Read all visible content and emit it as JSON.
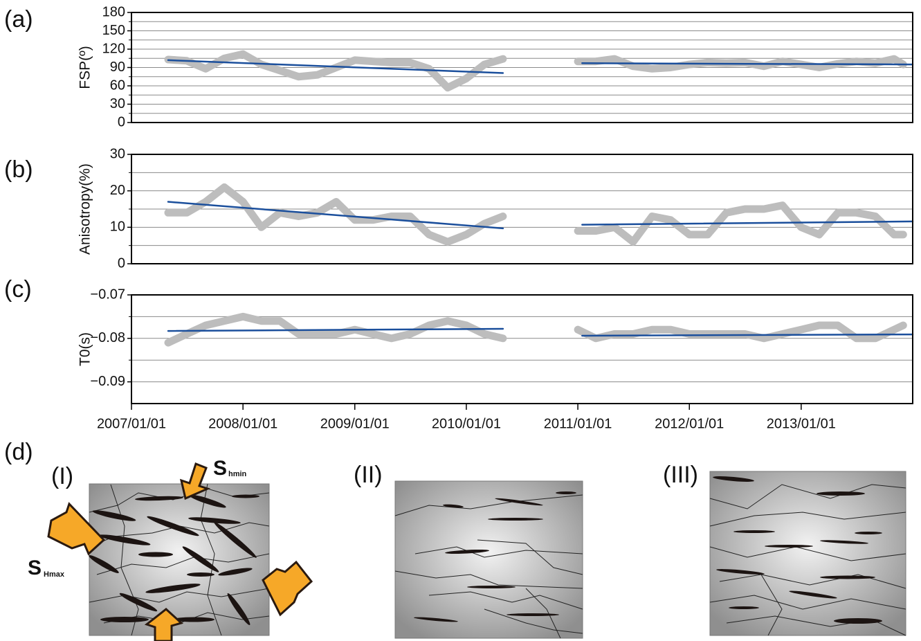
{
  "chart_data": [
    {
      "type": "line",
      "panel_label": "(a)",
      "y_label": "FSP(º)",
      "xlim": [
        "2007/01/01",
        "2014/01/01"
      ],
      "ylim": [
        0,
        180
      ],
      "yticks": [
        0,
        30,
        60,
        90,
        120,
        150,
        180
      ],
      "minor_yticks": [
        15,
        45,
        75,
        105,
        135,
        165
      ],
      "grid": true,
      "series": [
        {
          "color": "#bdbdbd",
          "x": [
            "2007/05/01",
            "2007/07/01",
            "2007/09/01",
            "2007/11/01",
            "2008/01/01",
            "2008/03/01",
            "2008/05/01",
            "2008/07/01",
            "2008/09/01",
            "2008/11/01",
            "2009/01/01",
            "2009/03/01",
            "2009/05/01",
            "2009/07/01",
            "2009/09/01",
            "2009/11/01",
            "2010/01/01",
            "2010/03/01",
            "2010/05/01",
            "2010/09/01",
            "2011/01/01",
            "2011/03/01",
            "2011/05/01",
            "2011/07/01",
            "2011/09/01",
            "2011/11/01",
            "2012/01/01",
            "2012/03/01",
            "2012/05/01",
            "2012/07/01",
            "2012/09/01",
            "2012/11/01",
            "2013/01/01",
            "2013/03/01",
            "2013/05/01",
            "2013/07/01",
            "2013/09/01",
            "2013/11/01",
            "2013/12/01"
          ],
          "values": [
            103,
            101,
            88,
            105,
            112,
            95,
            85,
            75,
            78,
            90,
            102,
            100,
            98,
            98,
            88,
            57,
            72,
            95,
            104,
            null,
            100,
            100,
            104,
            92,
            88,
            90,
            95,
            98,
            97,
            98,
            92,
            100,
            95,
            90,
            96,
            100,
            97,
            104,
            95
          ]
        },
        {
          "color": "#1b4f9c",
          "x": [
            "2007/05/01",
            "2010/05/01",
            "2010/09/01",
            "2011/01/15",
            "2014/01/01"
          ],
          "values": [
            102,
            81,
            null,
            97,
            95
          ]
        }
      ]
    },
    {
      "type": "line",
      "panel_label": "(b)",
      "y_label": "Anisotropy(%)",
      "xlim": [
        "2007/01/01",
        "2014/01/01"
      ],
      "ylim": [
        0,
        30
      ],
      "yticks": [
        0,
        10,
        20,
        30
      ],
      "minor_yticks": [
        5,
        15,
        25
      ],
      "grid": true,
      "series": [
        {
          "color": "#bdbdbd",
          "x": [
            "2007/05/01",
            "2007/07/01",
            "2007/09/01",
            "2007/11/01",
            "2008/01/01",
            "2008/03/01",
            "2008/05/01",
            "2008/07/01",
            "2008/09/01",
            "2008/11/01",
            "2009/01/01",
            "2009/03/01",
            "2009/05/01",
            "2009/07/01",
            "2009/09/01",
            "2009/11/01",
            "2010/01/01",
            "2010/03/01",
            "2010/05/01",
            "2010/09/01",
            "2011/01/01",
            "2011/03/01",
            "2011/05/01",
            "2011/07/01",
            "2011/09/01",
            "2011/11/01",
            "2012/01/01",
            "2012/03/01",
            "2012/05/01",
            "2012/07/01",
            "2012/09/01",
            "2012/11/01",
            "2013/01/01",
            "2013/03/01",
            "2013/05/01",
            "2013/07/01",
            "2013/09/01",
            "2013/11/01",
            "2013/12/01"
          ],
          "values": [
            14,
            14,
            17,
            21,
            17,
            10,
            14,
            13,
            14,
            17,
            12,
            12,
            13,
            13,
            8,
            6,
            8,
            11,
            13,
            null,
            9,
            9,
            10,
            6,
            13,
            12,
            8,
            8,
            14,
            15,
            15,
            16,
            10,
            8,
            14,
            14,
            13,
            8,
            8
          ]
        },
        {
          "color": "#1b4f9c",
          "x": [
            "2007/05/01",
            "2010/05/01",
            "2010/09/01",
            "2011/01/15",
            "2014/01/01"
          ],
          "values": [
            17,
            9.7,
            null,
            10.7,
            11.6
          ]
        }
      ]
    },
    {
      "type": "line",
      "panel_label": "(c)",
      "y_label": "T0(s)",
      "xlim": [
        "2007/01/01",
        "2014/01/01"
      ],
      "xticks": [
        "2007/01/01",
        "2008/01/01",
        "2009/01/01",
        "2010/01/01",
        "2011/01/01",
        "2012/01/01",
        "2013/01/01"
      ],
      "ylim": [
        -0.095,
        -0.07
      ],
      "yticks": [
        {
          "value": -0.07,
          "label": "−0.07"
        },
        {
          "value": -0.08,
          "label": "−0.08"
        },
        {
          "value": -0.09,
          "label": "−0.09"
        }
      ],
      "minor_yticks": [
        -0.075,
        -0.085
      ],
      "grid": true,
      "series": [
        {
          "color": "#bdbdbd",
          "x": [
            "2007/05/01",
            "2007/07/01",
            "2007/09/01",
            "2007/11/01",
            "2008/01/01",
            "2008/03/01",
            "2008/05/01",
            "2008/07/01",
            "2008/09/01",
            "2008/11/01",
            "2009/01/01",
            "2009/03/01",
            "2009/05/01",
            "2009/07/01",
            "2009/09/01",
            "2009/11/01",
            "2010/01/01",
            "2010/03/01",
            "2010/05/01",
            "2010/09/01",
            "2011/01/01",
            "2011/03/01",
            "2011/05/01",
            "2011/07/01",
            "2011/09/01",
            "2011/11/01",
            "2012/01/01",
            "2012/03/01",
            "2012/05/01",
            "2012/07/01",
            "2012/09/01",
            "2012/11/01",
            "2013/01/01",
            "2013/03/01",
            "2013/05/01",
            "2013/07/01",
            "2013/09/01",
            "2013/11/01",
            "2013/12/01"
          ],
          "values": [
            -0.081,
            -0.079,
            -0.077,
            -0.076,
            -0.075,
            -0.076,
            -0.076,
            -0.079,
            -0.079,
            -0.079,
            -0.078,
            -0.079,
            -0.08,
            -0.079,
            -0.077,
            -0.076,
            -0.077,
            -0.079,
            -0.08,
            null,
            -0.078,
            -0.08,
            -0.079,
            -0.079,
            -0.078,
            -0.078,
            -0.079,
            -0.079,
            -0.079,
            -0.079,
            -0.08,
            -0.079,
            -0.078,
            -0.077,
            -0.077,
            -0.08,
            -0.08,
            -0.078,
            -0.077
          ]
        },
        {
          "color": "#1b4f9c",
          "x": [
            "2007/05/01",
            "2010/05/01",
            "2010/09/01",
            "2011/01/15",
            "2014/01/01"
          ],
          "values": [
            -0.0783,
            -0.0778,
            null,
            -0.0794,
            -0.0791
          ]
        }
      ]
    }
  ],
  "diagram": {
    "label": "(d)",
    "panels": [
      "(I)",
      "(II)",
      "(III)"
    ],
    "stress_min": {
      "symbol": "S",
      "subscript": "hmin"
    },
    "stress_max": {
      "symbol": "S",
      "subscript": "Hmax"
    }
  }
}
